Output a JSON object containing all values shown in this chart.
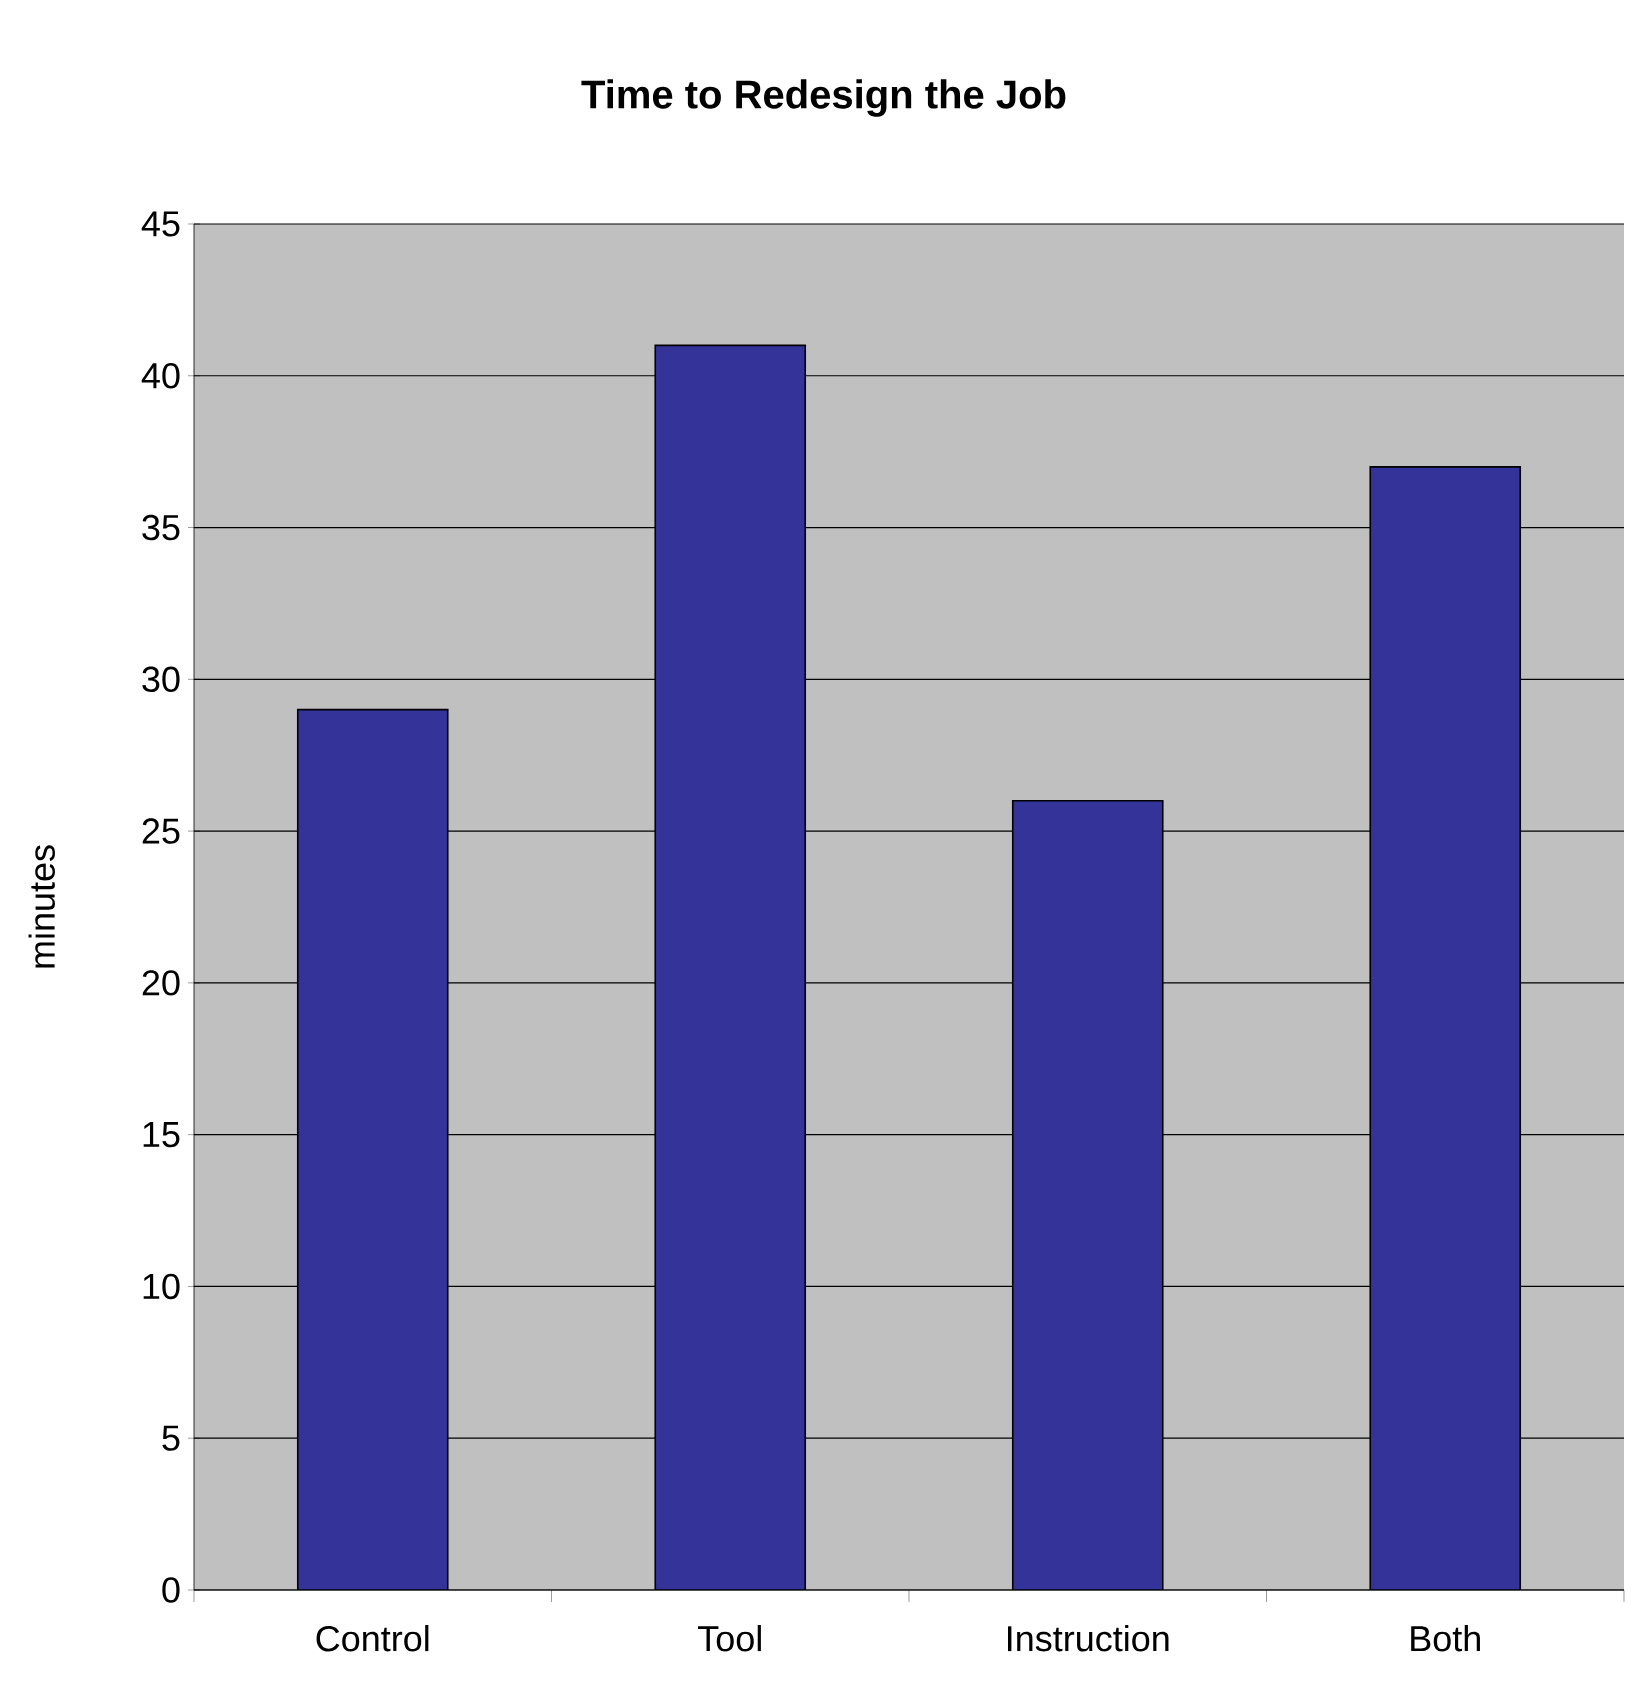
{
  "chart_data": {
    "type": "bar",
    "title": "Time to Redesign the Job",
    "ylabel": "minutes",
    "categories": [
      "Control",
      "Tool",
      "Instruction",
      "Both"
    ],
    "values": [
      29,
      41,
      26,
      37
    ],
    "color": "#333399",
    "ylim": [
      0,
      45
    ],
    "yticks": [
      0,
      5,
      10,
      15,
      20,
      25,
      30,
      35,
      40,
      45
    ],
    "grid": "y"
  }
}
